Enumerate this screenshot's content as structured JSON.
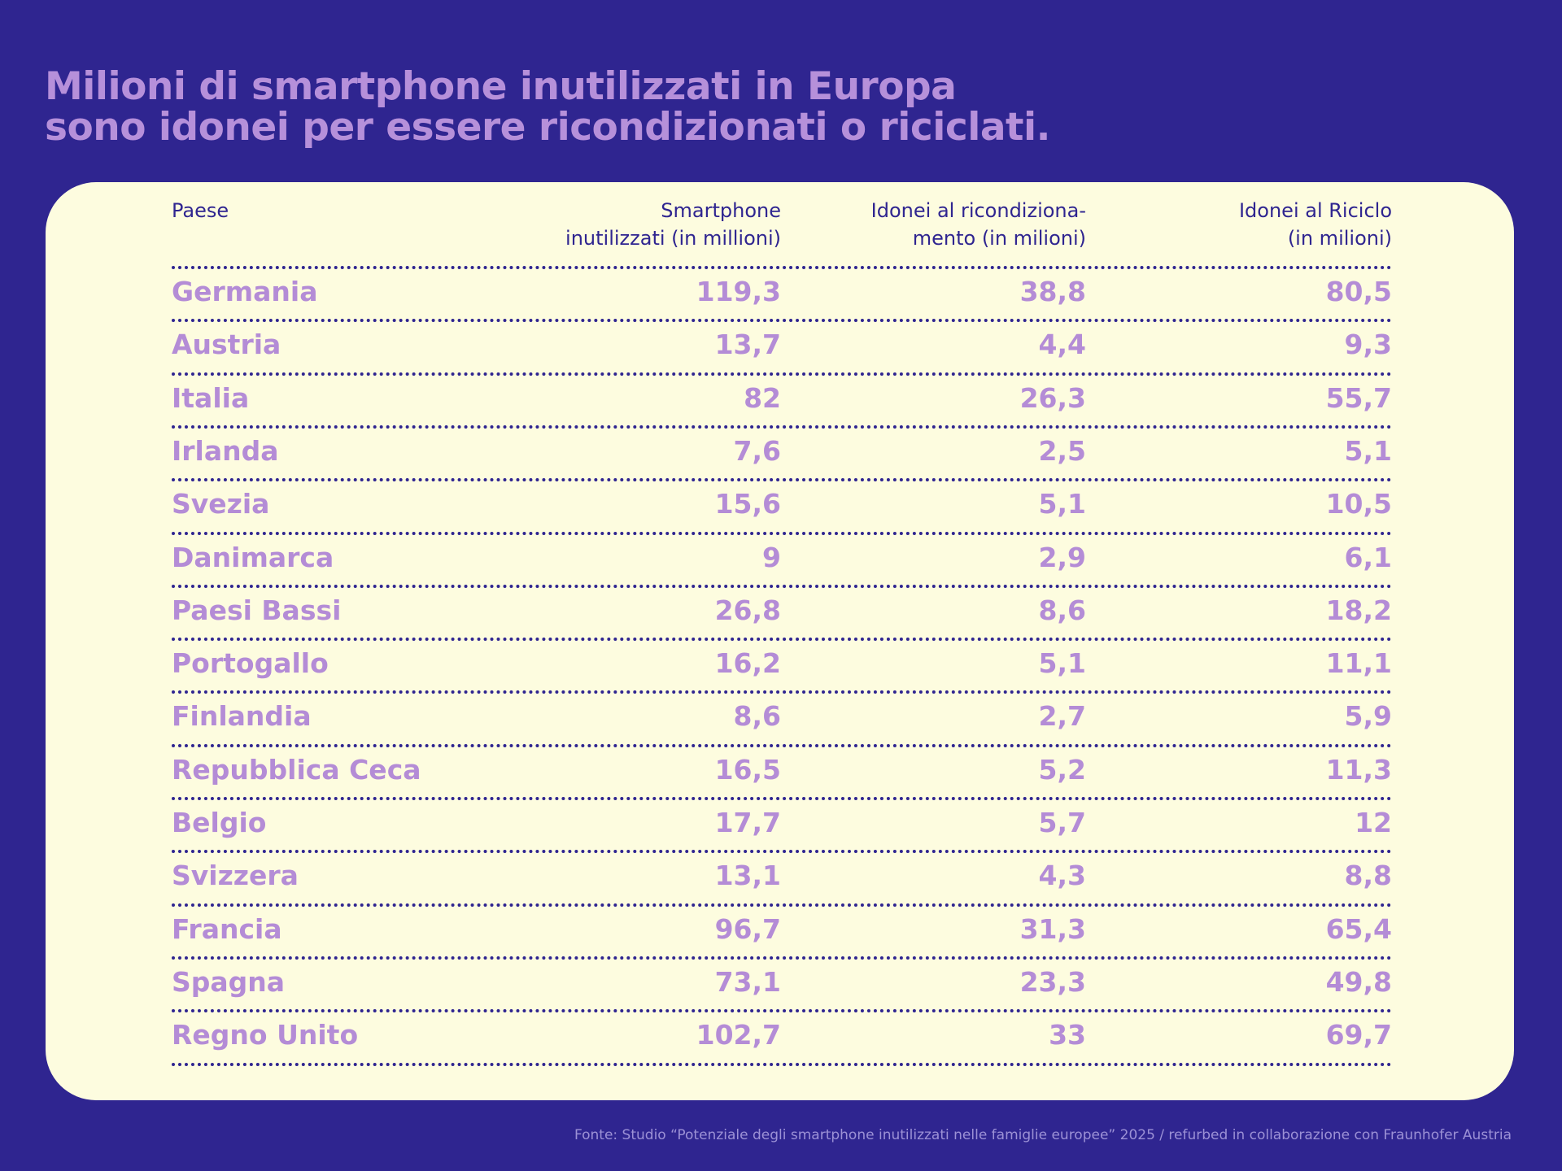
{
  "header": {
    "title": "Milioni di smartphone inutilizzati in Europa\nsono idonei per essere ricondizionati o riciclati."
  },
  "table": {
    "columns": [
      "Paese",
      "Smartphone\ninutilizzati (in millioni)",
      "Idonei al ricondiziona-\nmento (in milioni)",
      "Idonei al Riciclo\n(in milioni)"
    ],
    "rows": [
      [
        "Germania",
        "119,3",
        "38,8",
        "80,5"
      ],
      [
        "Austria",
        "13,7",
        "4,4",
        "9,3"
      ],
      [
        "Italia",
        "82",
        "26,3",
        "55,7"
      ],
      [
        "Irlanda",
        "7,6",
        "2,5",
        "5,1"
      ],
      [
        "Svezia",
        "15,6",
        "5,1",
        "10,5"
      ],
      [
        "Danimarca",
        "9",
        "2,9",
        "6,1"
      ],
      [
        "Paesi Bassi",
        "26,8",
        "8,6",
        "18,2"
      ],
      [
        "Portogallo",
        "16,2",
        "5,1",
        "11,1"
      ],
      [
        "Finlandia",
        "8,6",
        "2,7",
        "5,9"
      ],
      [
        "Repubblica Ceca",
        "16,5",
        "5,2",
        "11,3"
      ],
      [
        "Belgio",
        "17,7",
        "5,7",
        "12"
      ],
      [
        "Svizzera",
        "13,1",
        "4,3",
        "8,8"
      ],
      [
        "Francia",
        "96,7",
        "31,3",
        "65,4"
      ],
      [
        "Spagna",
        "73,1",
        "23,3",
        "49,8"
      ],
      [
        "Regno Unito",
        "102,7",
        "33",
        "69,7"
      ]
    ]
  },
  "footer": {
    "source": "Fonte: Studio “Potenziale degli smartphone inutilizzati nelle famiglie europee” 2025 / refurbed in collaborazione con Fraunhofer Austria"
  }
}
